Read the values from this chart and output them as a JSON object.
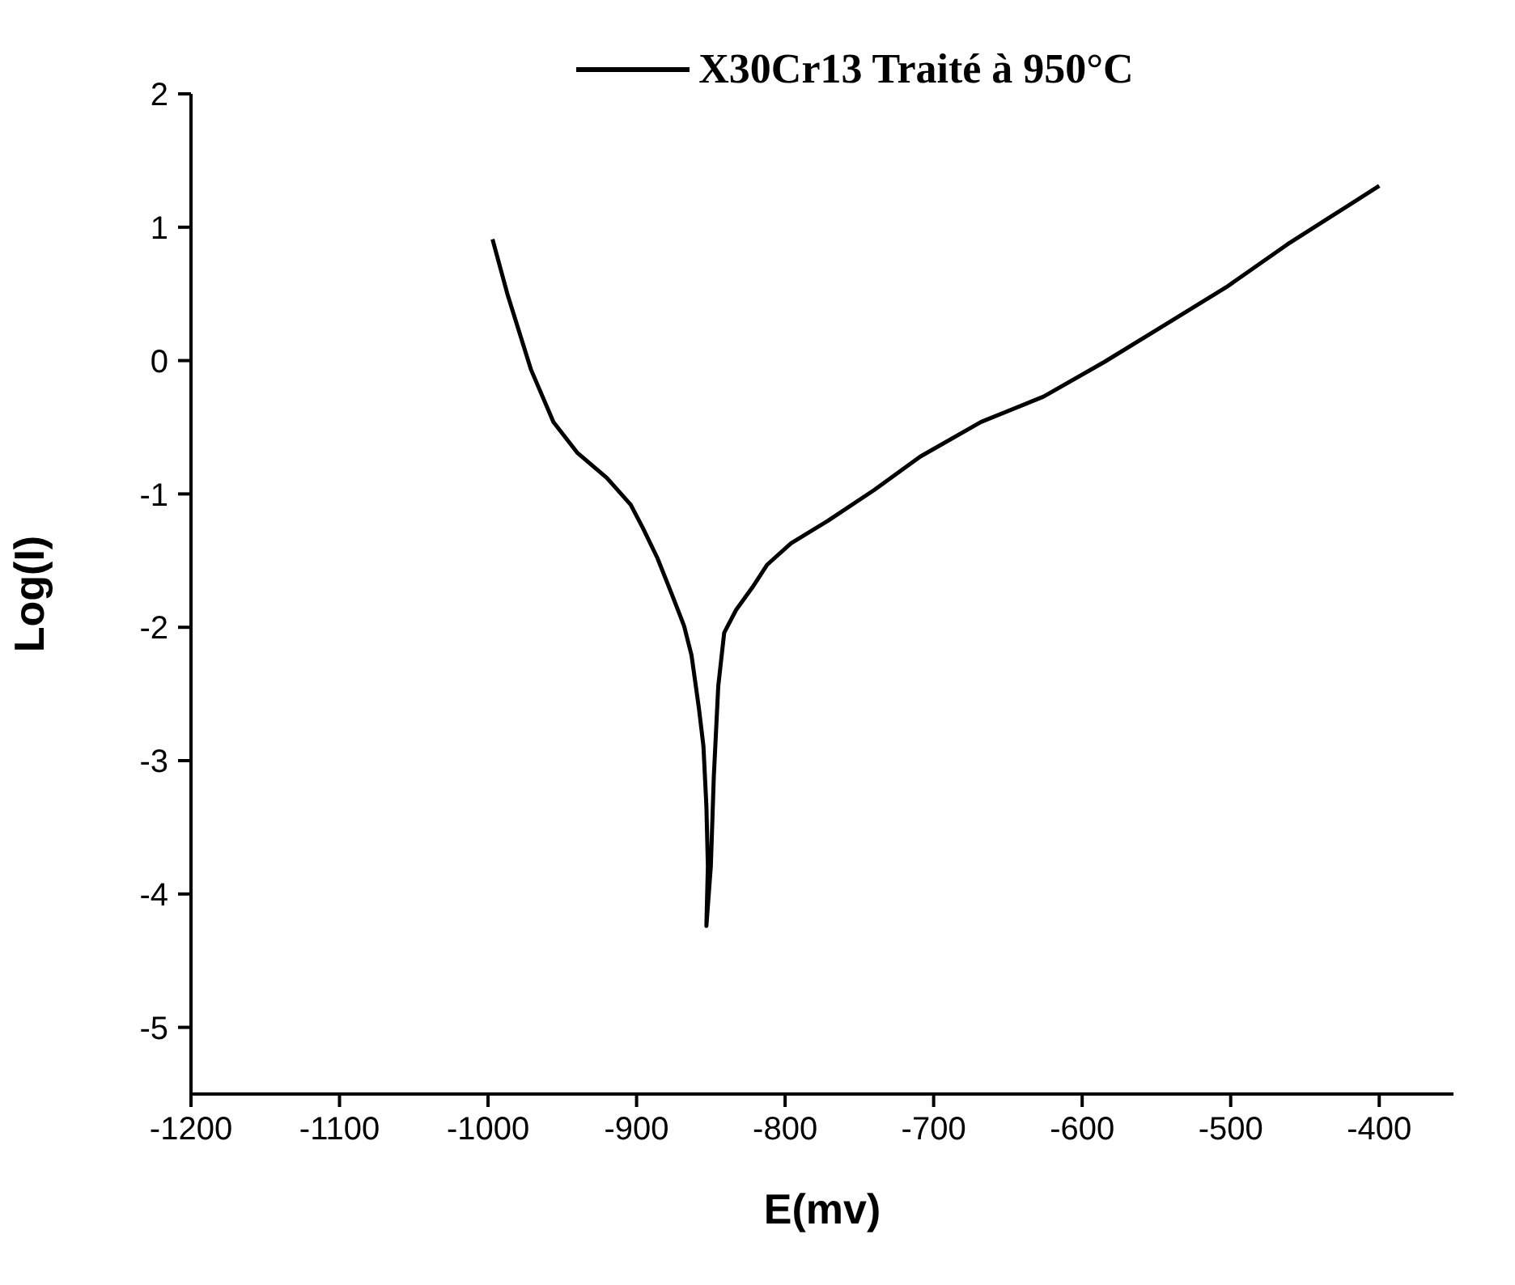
{
  "chart_data": {
    "type": "line",
    "xlabel": "E(mv)",
    "ylabel": "Log(I)",
    "xlim": [
      -1200,
      -350
    ],
    "xticks": [
      -1200,
      -1100,
      -1000,
      -900,
      -800,
      -700,
      -600,
      -500,
      -400
    ],
    "ylim": [
      -5.5,
      2
    ],
    "yticks": [
      -5,
      -4,
      -3,
      -2,
      -1,
      0,
      1,
      2
    ],
    "grid": false,
    "legend": "top",
    "marker": "none",
    "line_style": "solid",
    "series": [
      {
        "name": "X30Cr13 Traité à 950°C",
        "color": "#000000",
        "x": [
          -997,
          -987,
          -971,
          -956,
          -940,
          -920,
          -904,
          -896,
          -886,
          -876,
          -868,
          -863,
          -858,
          -855,
          -853,
          -852,
          -853,
          -850,
          -848,
          -845,
          -841,
          -833,
          -822,
          -812,
          -796,
          -771,
          -740,
          -709,
          -668,
          -626,
          -585,
          -544,
          -503,
          -462,
          -431,
          -400
        ],
        "values": [
          0.91,
          0.5,
          -0.07,
          -0.46,
          -0.69,
          -0.88,
          -1.08,
          -1.25,
          -1.48,
          -1.76,
          -1.99,
          -2.21,
          -2.61,
          -2.89,
          -3.34,
          -3.79,
          -4.24,
          -3.79,
          -3.12,
          -2.44,
          -2.04,
          -1.87,
          -1.7,
          -1.53,
          -1.37,
          -1.2,
          -0.97,
          -0.72,
          -0.46,
          -0.27,
          -0.01,
          0.27,
          0.55,
          0.87,
          1.09,
          1.31
        ]
      }
    ]
  }
}
